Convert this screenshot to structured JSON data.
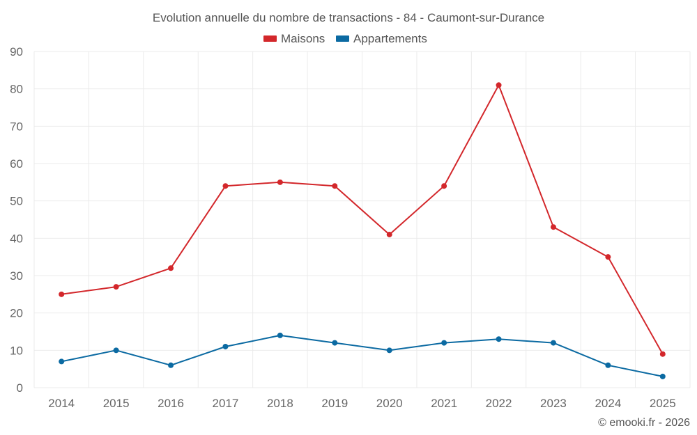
{
  "chart_data": {
    "type": "line",
    "title": "Evolution annuelle du nombre de transactions - 84 - Caumont-sur-Durance",
    "categories": [
      "2014",
      "2015",
      "2016",
      "2017",
      "2018",
      "2019",
      "2020",
      "2021",
      "2022",
      "2023",
      "2024",
      "2025"
    ],
    "series": [
      {
        "name": "Maisons",
        "color": "#d3272b",
        "values": [
          25,
          27,
          32,
          54,
          55,
          54,
          41,
          54,
          81,
          43,
          35,
          9
        ]
      },
      {
        "name": "Appartements",
        "color": "#0b6aa2",
        "values": [
          7,
          10,
          6,
          11,
          14,
          12,
          10,
          12,
          13,
          12,
          6,
          3
        ]
      }
    ],
    "ylim": [
      0,
      90
    ],
    "yticks": [
      0,
      10,
      20,
      30,
      40,
      50,
      60,
      70,
      80,
      90
    ],
    "grid": true,
    "legend_position": "top-center",
    "xlabel": "",
    "ylabel": ""
  },
  "credit": "© emooki.fr - 2026"
}
